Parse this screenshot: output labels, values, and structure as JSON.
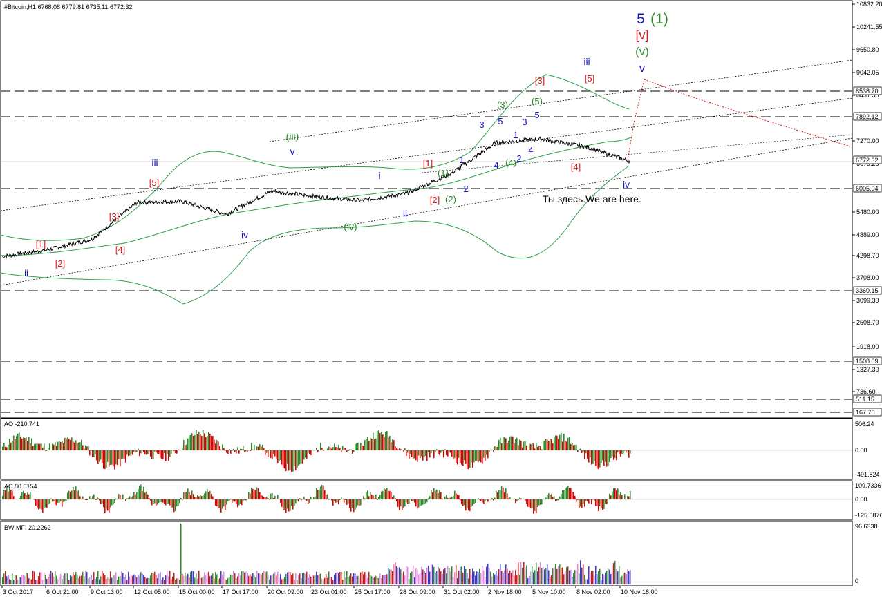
{
  "chart_header": "#Bitcoin,H1  6768.08 6779.81 6735.11 6772.32",
  "annotation_text": "Ты здесь.We are here.",
  "target_labels": {
    "main_degree": "5",
    "main_paren": "(1)",
    "bracket": "[v]",
    "paren": "(v)",
    "small": "v"
  },
  "colors": {
    "blue": "#1414c8",
    "red": "#d11a1a",
    "green": "#2a8a2a",
    "price": "#000000",
    "bands": "#2e9e4a",
    "ao_up": "#2e8b2e",
    "ao_down": "#e00000",
    "mfi": "#3c3cd0"
  },
  "price_axis_labels": [
    "10832.20",
    "10241.55",
    "9650.80",
    "9042.05",
    "8431.30",
    "7270.00",
    "6679.25",
    "5480.00",
    "4889.00",
    "4298.70",
    "3708.00",
    "3099.30",
    "2508.70",
    "1918.00",
    "1327.30",
    "736.60"
  ],
  "price_levels": [
    {
      "value": "8538.70",
      "style": "box"
    },
    {
      "value": "7892.12",
      "style": "box"
    },
    {
      "value": "6772.32",
      "style": "box"
    },
    {
      "value": "6005.04",
      "style": "box"
    },
    {
      "value": "3360.15",
      "style": "box"
    },
    {
      "value": "1508.09",
      "style": "box"
    },
    {
      "value": "511.15",
      "style": "box"
    },
    {
      "value": "167.70",
      "style": "box"
    }
  ],
  "time_axis_labels": [
    "3 Oct 2017",
    "6 Oct 21:00",
    "9 Oct 13:00",
    "12 Oct 05:00",
    "15 Oct 00:00",
    "17 Oct 17:00",
    "20 Oct 09:00",
    "23 Oct 01:00",
    "25 Oct 17:00",
    "28 Oct 09:00",
    "31 Oct 02:00",
    "2 Nov 18:00",
    "5 Nov 10:00",
    "8 Nov 02:00",
    "10 Nov 18:00"
  ],
  "ao": {
    "label": "AO -210.741",
    "axis": [
      "506.24",
      "0.00",
      "-491.824"
    ]
  },
  "ac": {
    "label": "AC 80.6154",
    "axis": [
      "109.7336",
      "0.00",
      "-125.0876"
    ]
  },
  "mfi": {
    "label": "BW MFI 20.2262",
    "axis": [
      "96.6338",
      "0"
    ]
  },
  "wave_labels": [
    {
      "t": "ii",
      "c": "blue"
    },
    {
      "t": "[1]",
      "c": "red"
    },
    {
      "t": "[2]",
      "c": "red"
    },
    {
      "t": "[3]",
      "c": "red"
    },
    {
      "t": "[4]",
      "c": "red"
    },
    {
      "t": "[5]",
      "c": "red"
    },
    {
      "t": "iii",
      "c": "blue"
    },
    {
      "t": "iv",
      "c": "blue"
    },
    {
      "t": "(iii)",
      "c": "green"
    },
    {
      "t": "v",
      "c": "blue"
    },
    {
      "t": "(iv)",
      "c": "green"
    },
    {
      "t": "i",
      "c": "blue"
    },
    {
      "t": "ii",
      "c": "blue"
    },
    {
      "t": "[1]",
      "c": "red"
    },
    {
      "t": "[2]",
      "c": "red"
    },
    {
      "t": "(1)",
      "c": "green"
    },
    {
      "t": "(2)",
      "c": "green"
    },
    {
      "t": "1",
      "c": "blue"
    },
    {
      "t": "2",
      "c": "blue"
    },
    {
      "t": "3",
      "c": "blue"
    },
    {
      "t": "4",
      "c": "blue"
    },
    {
      "t": "5",
      "c": "blue"
    },
    {
      "t": "(3)",
      "c": "green"
    },
    {
      "t": "(4)",
      "c": "green"
    },
    {
      "t": "1",
      "c": "blue"
    },
    {
      "t": "2",
      "c": "blue"
    },
    {
      "t": "3",
      "c": "blue"
    },
    {
      "t": "4",
      "c": "blue"
    },
    {
      "t": "5",
      "c": "blue"
    },
    {
      "t": "(5)",
      "c": "green"
    },
    {
      "t": "[3]",
      "c": "red"
    },
    {
      "t": "[4]",
      "c": "red"
    },
    {
      "t": "iii",
      "c": "blue"
    },
    {
      "t": "[5]",
      "c": "red"
    },
    {
      "t": "iv",
      "c": "blue"
    }
  ],
  "chart_data": {
    "type": "line",
    "symbol": "#Bitcoin",
    "timeframe": "H1",
    "ohlc_last": {
      "open": 6768.08,
      "high": 6779.81,
      "low": 6735.11,
      "close": 6772.32
    },
    "x": [
      "3 Oct",
      "6 Oct",
      "9 Oct",
      "12 Oct",
      "15 Oct",
      "17 Oct",
      "20 Oct",
      "23 Oct",
      "25 Oct",
      "28 Oct",
      "31 Oct",
      "2 Nov",
      "5 Nov",
      "8 Nov",
      "10 Nov"
    ],
    "series": [
      {
        "values": [
          4250,
          4420,
          4700,
          5650,
          5680,
          5350,
          5950,
          5800,
          5700,
          5880,
          6400,
          7200,
          7300,
          7100,
          6720
        ]
      }
    ],
    "ylim": [
      167.7,
      10832.2
    ]
  }
}
